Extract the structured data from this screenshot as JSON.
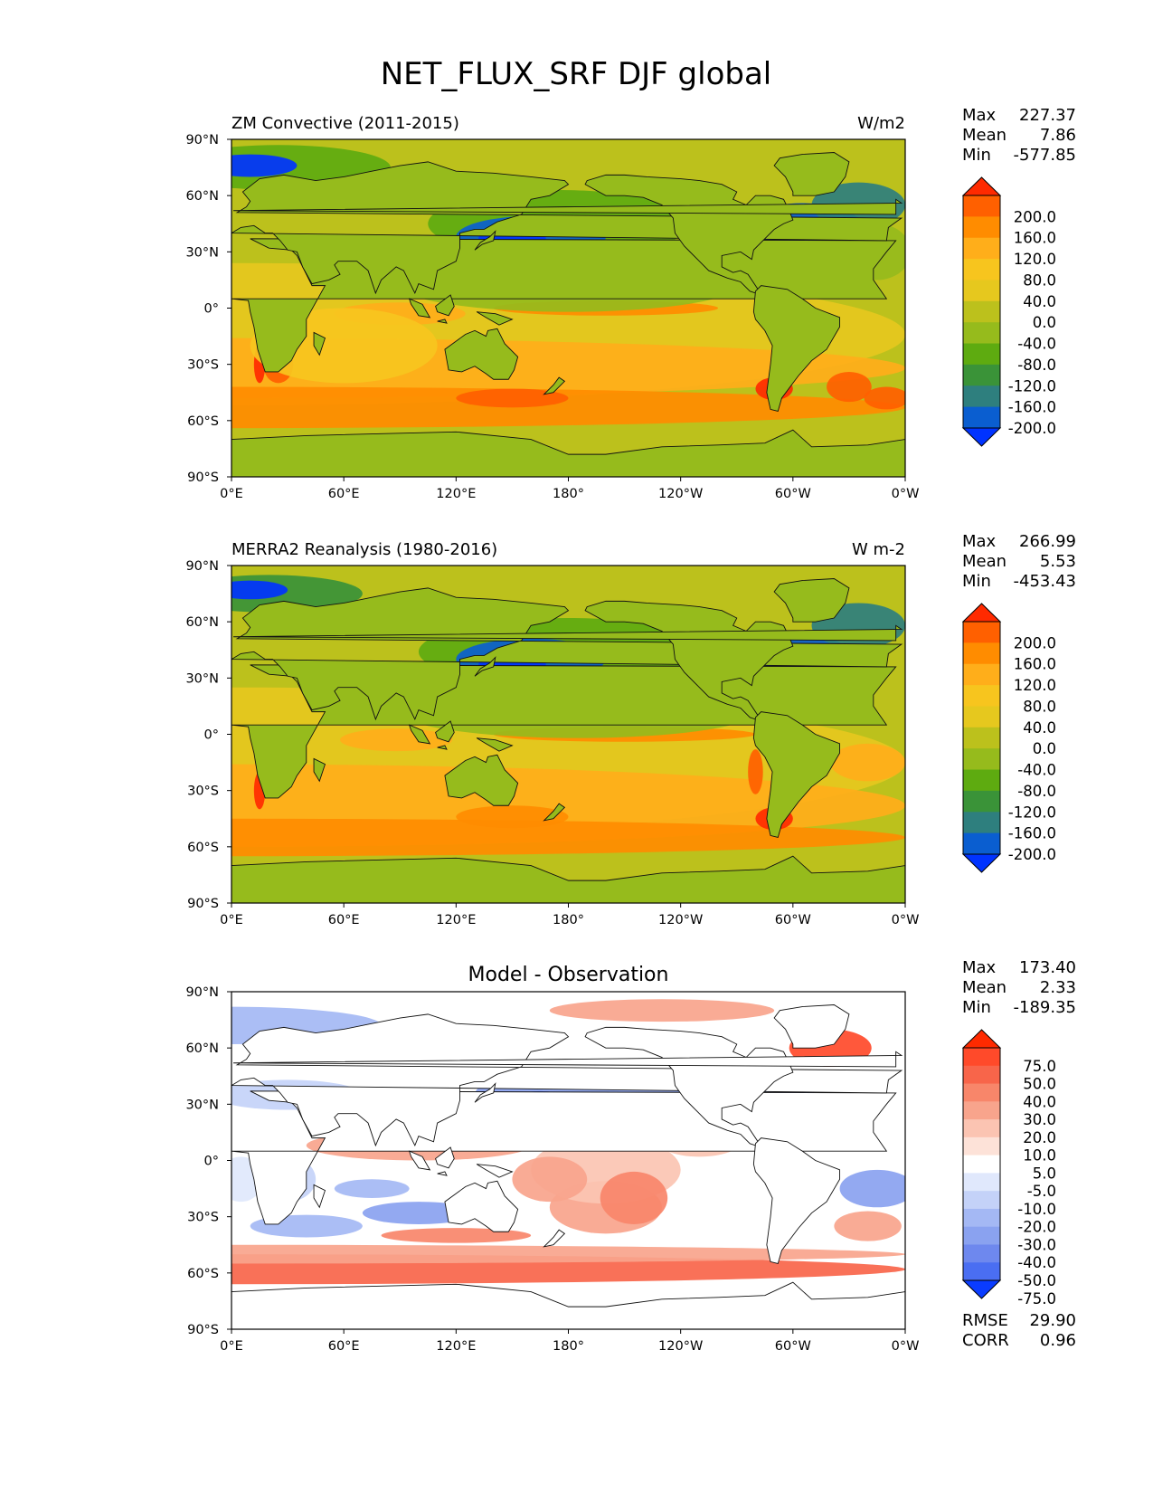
{
  "figure_title": "NET_FLUX_SRF DJF global",
  "chart_data": [
    {
      "type": "heatmap",
      "title_left": "ZM Convective (2011-2015)",
      "title_center": "",
      "units": "W/m2",
      "x_ticks": [
        "0°E",
        "60°E",
        "120°E",
        "180°",
        "120°W",
        "60°W",
        "0°W"
      ],
      "y_ticks": [
        "90°N",
        "60°N",
        "30°N",
        "0°",
        "30°S",
        "60°S",
        "90°S"
      ],
      "xlim": [
        0,
        360
      ],
      "ylim": [
        -90,
        90
      ],
      "stats": [
        {
          "label": "Max",
          "value": "227.37"
        },
        {
          "label": "Mean",
          "value": "7.86"
        },
        {
          "label": "Min",
          "value": "-577.85"
        }
      ],
      "colorbar": {
        "labels": [
          "200.0",
          "160.0",
          "120.0",
          "80.0",
          "40.0",
          "0.0",
          "-40.0",
          "-80.0",
          "-120.0",
          "-160.0",
          "-200.0"
        ],
        "colors": [
          "#ff2a00",
          "#ff6000",
          "#ff8c00",
          "#ffae1a",
          "#f7c51e",
          "#e6c81e",
          "#bcc11c",
          "#96bb1c",
          "#5eab10",
          "#3a9338",
          "#2e7f7e",
          "#0a5ed0",
          "#0033ff"
        ]
      },
      "extras": []
    },
    {
      "type": "heatmap",
      "title_left": "MERRA2 Reanalysis (1980-2016)",
      "title_center": "",
      "units": "W m-2",
      "x_ticks": [
        "0°E",
        "60°E",
        "120°E",
        "180°",
        "120°W",
        "60°W",
        "0°W"
      ],
      "y_ticks": [
        "90°N",
        "60°N",
        "30°N",
        "0°",
        "30°S",
        "60°S",
        "90°S"
      ],
      "xlim": [
        0,
        360
      ],
      "ylim": [
        -90,
        90
      ],
      "stats": [
        {
          "label": "Max",
          "value": "266.99"
        },
        {
          "label": "Mean",
          "value": "5.53"
        },
        {
          "label": "Min",
          "value": "-453.43"
        }
      ],
      "colorbar": {
        "labels": [
          "200.0",
          "160.0",
          "120.0",
          "80.0",
          "40.0",
          "0.0",
          "-40.0",
          "-80.0",
          "-120.0",
          "-160.0",
          "-200.0"
        ],
        "colors": [
          "#ff2a00",
          "#ff6000",
          "#ff8c00",
          "#ffae1a",
          "#f7c51e",
          "#e6c81e",
          "#bcc11c",
          "#96bb1c",
          "#5eab10",
          "#3a9338",
          "#2e7f7e",
          "#0a5ed0",
          "#0033ff"
        ]
      },
      "extras": []
    },
    {
      "type": "heatmap",
      "title_left": "",
      "title_center": "Model - Observation",
      "units": "",
      "x_ticks": [
        "0°E",
        "60°E",
        "120°E",
        "180°",
        "120°W",
        "60°W",
        "0°W"
      ],
      "y_ticks": [
        "90°N",
        "60°N",
        "30°N",
        "0°",
        "30°S",
        "60°S",
        "90°S"
      ],
      "xlim": [
        0,
        360
      ],
      "ylim": [
        -90,
        90
      ],
      "stats": [
        {
          "label": "Max",
          "value": "173.40"
        },
        {
          "label": "Mean",
          "value": "2.33"
        },
        {
          "label": "Min",
          "value": "-189.35"
        }
      ],
      "colorbar": {
        "labels": [
          "75.0",
          "50.0",
          "40.0",
          "30.0",
          "20.0",
          "10.0",
          "5.0",
          "-5.0",
          "-10.0",
          "-20.0",
          "-30.0",
          "-40.0",
          "-50.0",
          "-75.0"
        ],
        "colors": [
          "#ff2a00",
          "#ff4a2a",
          "#f8654a",
          "#f8866a",
          "#f8a48c",
          "#fbc4b2",
          "#fde2d8",
          "#ffffff",
          "#e0e8fc",
          "#c4d2f8",
          "#a4b8f4",
          "#8aa2f0",
          "#6e88ee",
          "#4a6ef2",
          "#0a3cff"
        ]
      },
      "extras": [
        {
          "label": "RMSE",
          "value": "29.90"
        },
        {
          "label": "CORR",
          "value": "0.96"
        }
      ]
    }
  ]
}
